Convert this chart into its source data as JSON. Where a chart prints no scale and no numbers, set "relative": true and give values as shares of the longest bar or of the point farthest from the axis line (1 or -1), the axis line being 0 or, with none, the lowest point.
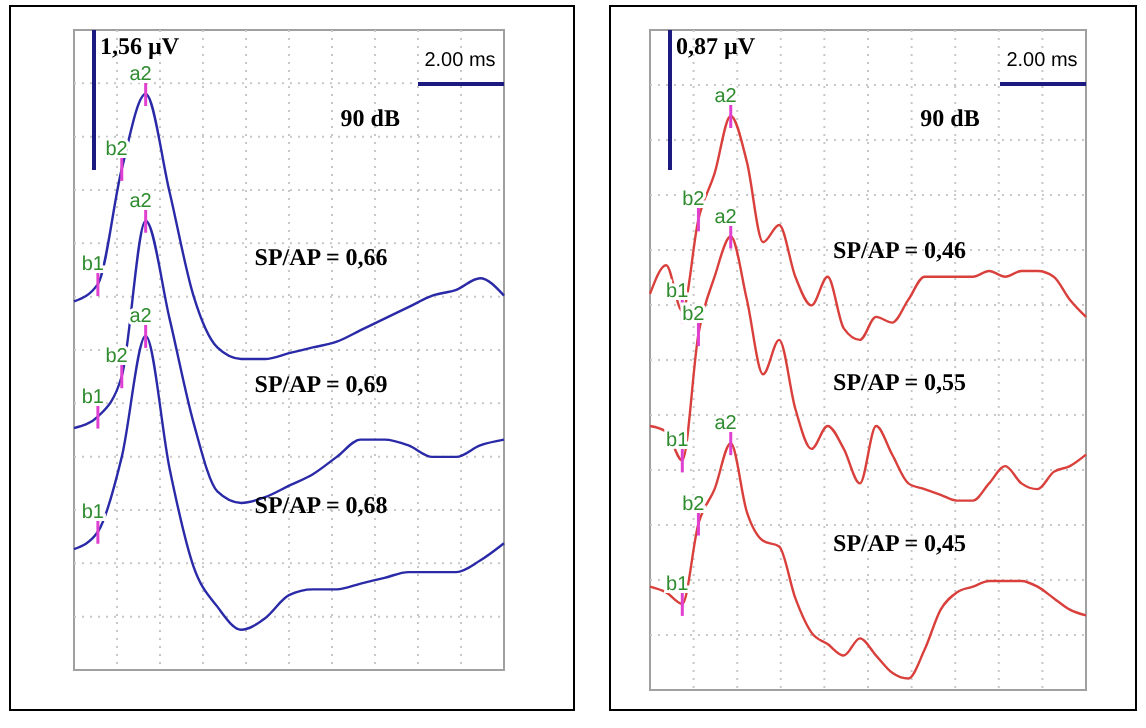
{
  "chart_data": [
    {
      "type": "line",
      "relative": true,
      "grid": true,
      "marker": "none",
      "line_style": "solid",
      "categories": [
        null,
        null,
        null,
        null,
        null,
        null,
        null,
        null,
        null,
        null,
        null,
        null,
        null,
        null,
        null,
        null,
        null,
        null,
        null
      ],
      "series": [
        {
          "color": "#2a2aa8",
          "values": [
            0.64,
            0.67,
            0.87,
            1,
            0.83,
            0.65,
            0.56,
            0.54,
            0.54,
            0.55,
            0.56,
            0.57,
            0.59,
            0.61,
            0.63,
            0.65,
            0.66,
            0.68,
            0.65
          ]
        },
        {
          "color": "#2a2aa8",
          "values": [
            0.42,
            0.44,
            0.51,
            0.78,
            0.61,
            0.43,
            0.31,
            0.29,
            0.3,
            0.32,
            0.34,
            0.37,
            0.4,
            0.4,
            0.39,
            0.37,
            0.37,
            0.39,
            0.4
          ]
        },
        {
          "color": "#2a2aa8",
          "values": [
            0.21,
            0.24,
            0.37,
            0.58,
            0.35,
            0.18,
            0.11,
            0.07,
            0.09,
            0.13,
            0.14,
            0.14,
            0.15,
            0.16,
            0.17,
            0.17,
            0.17,
            0.19,
            0.22
          ]
        }
      ],
      "annotations": [
        "1,56 µV",
        "2.00 ms",
        "90 dB",
        "SP/AP =  0,66",
        "SP/AP = 0,69",
        "SP/AP = 0,68",
        {
          "text": "a2",
          "y": 1
        },
        {
          "text": "b2",
          "y": 0.87
        },
        {
          "text": "b1",
          "y": 0.67
        },
        {
          "text": "a2",
          "y": 0.78
        },
        {
          "text": "b2",
          "y": 0.51
        },
        {
          "text": "b1",
          "y": 0.44
        },
        {
          "text": "a2",
          "y": 0.58
        },
        {
          "text": "b1",
          "y": 0.24
        }
      ]
    },
    {
      "type": "line",
      "relative": true,
      "grid": true,
      "marker": "none",
      "line_style": "solid",
      "categories": [
        null,
        null,
        null,
        null,
        null,
        null,
        null,
        null,
        null,
        null,
        null,
        null,
        null,
        null,
        null,
        null,
        null,
        null,
        null,
        null,
        null,
        null,
        null,
        null,
        null,
        null,
        null,
        null
      ],
      "series": [
        {
          "color": "#d9403c",
          "values": [
            0.69,
            0.74,
            0.66,
            0.82,
            0.9,
            1,
            0.92,
            0.78,
            0.81,
            0.72,
            0.67,
            0.72,
            0.63,
            0.61,
            0.65,
            0.64,
            0.68,
            0.72,
            0.72,
            0.72,
            0.72,
            0.73,
            0.72,
            0.73,
            0.73,
            0.72,
            0.68,
            0.65
          ]
        },
        {
          "color": "#d9403c",
          "values": [
            0.46,
            0.45,
            0.4,
            0.62,
            0.72,
            0.79,
            0.68,
            0.55,
            0.61,
            0.49,
            0.42,
            0.46,
            0.42,
            0.36,
            0.46,
            0.41,
            0.36,
            0.35,
            0.34,
            0.33,
            0.33,
            0.36,
            0.39,
            0.36,
            0.35,
            0.38,
            0.39,
            0.41
          ]
        },
        {
          "color": "#d9403c",
          "values": [
            0.18,
            0.17,
            0.15,
            0.29,
            0.35,
            0.43,
            0.31,
            0.26,
            0.25,
            0.16,
            0.1,
            0.08,
            0.06,
            0.09,
            0.06,
            0.03,
            0.02,
            0.07,
            0.14,
            0.17,
            0.18,
            0.19,
            0.19,
            0.19,
            0.18,
            0.16,
            0.14,
            0.13
          ]
        }
      ],
      "annotations": [
        "0,87  µV",
        "2.00 ms",
        "90 dB",
        "SP/AP =  0,46",
        "SP/AP =  0,55",
        "SP/AP =  0,45",
        {
          "text": "a2",
          "y": 1
        },
        {
          "text": "b2",
          "y": 0.82
        },
        {
          "text": "b1",
          "y": 0.66
        },
        {
          "text": "a2",
          "y": 0.79
        },
        {
          "text": "b2",
          "y": 0.62
        },
        {
          "text": "b1",
          "y": 0.4
        },
        {
          "text": "a2",
          "y": 0.43
        },
        {
          "text": "b2",
          "y": 0.29
        },
        {
          "text": "b1",
          "y": 0.15
        }
      ]
    }
  ]
}
